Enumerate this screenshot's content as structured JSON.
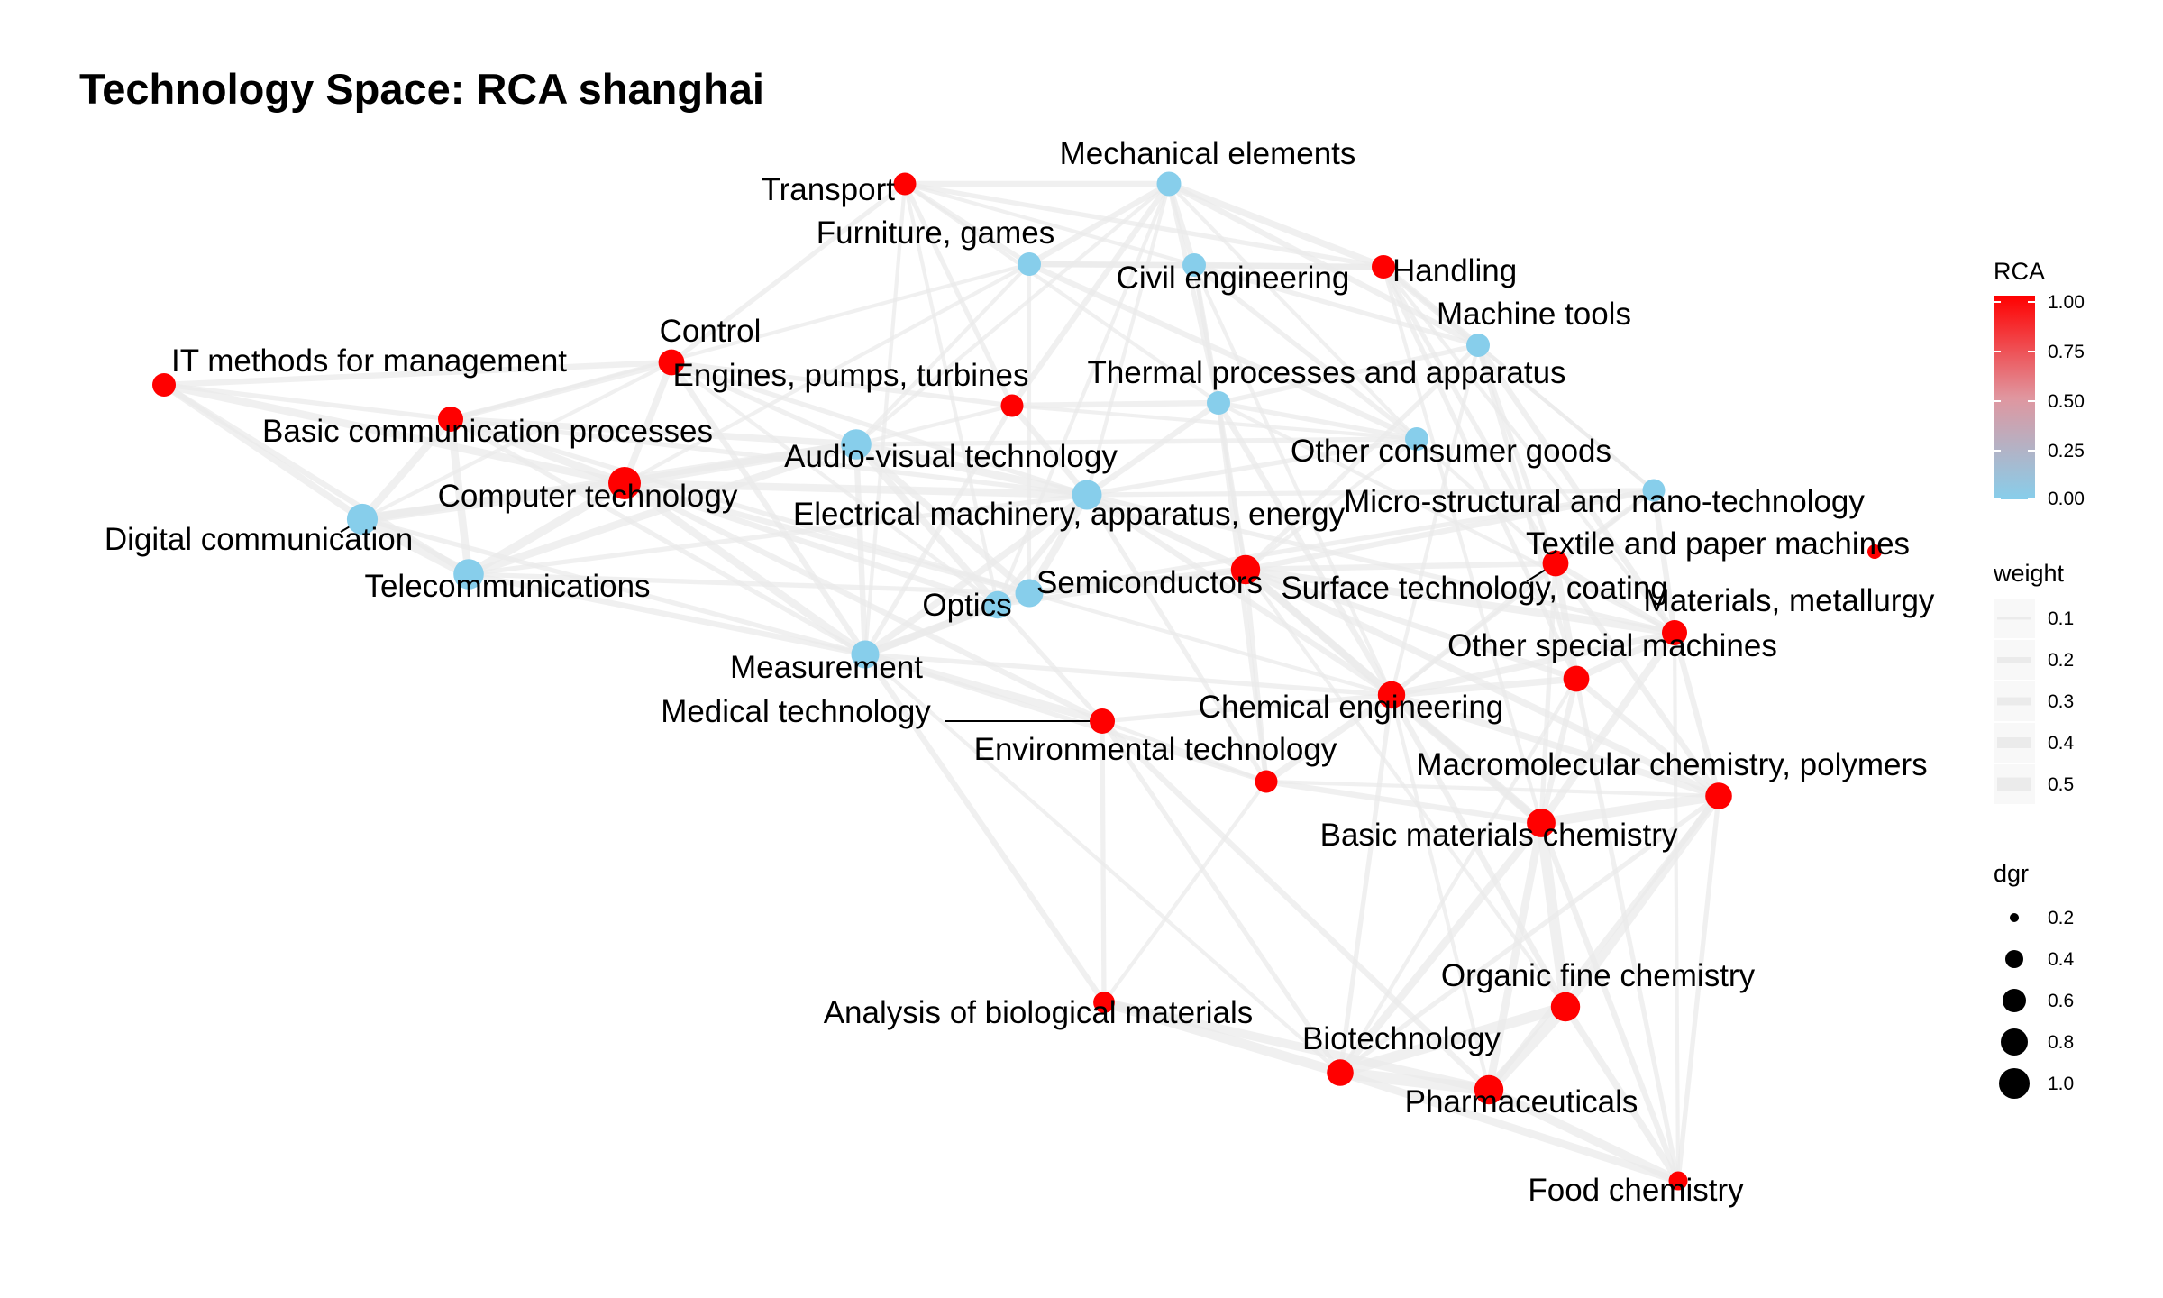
{
  "title": "Technology Space: RCA shanghai",
  "colors": {
    "low": "#87CEEB",
    "high": "#FF0000",
    "edge": "#EBEBEB",
    "background": "#FFFFFF"
  },
  "nodes": [
    {
      "id": "transport",
      "label": "Transport",
      "rca": 1,
      "dgr": 0.25
    },
    {
      "id": "mechanical-elements",
      "label": "Mechanical elements",
      "rca": 0,
      "dgr": 0.35
    },
    {
      "id": "furniture-games",
      "label": "Furniture, games",
      "rca": 0,
      "dgr": 0.3
    },
    {
      "id": "civil-engineering",
      "label": "Civil engineering",
      "rca": 0,
      "dgr": 0.3
    },
    {
      "id": "handling",
      "label": "Handling",
      "rca": 1,
      "dgr": 0.3
    },
    {
      "id": "machine-tools",
      "label": "Machine tools",
      "rca": 0,
      "dgr": 0.3
    },
    {
      "id": "control",
      "label": "Control",
      "rca": 1,
      "dgr": 0.45
    },
    {
      "id": "it-methods",
      "label": "IT methods for management",
      "rca": 1,
      "dgr": 0.3
    },
    {
      "id": "engines-pumps",
      "label": "Engines, pumps, turbines",
      "rca": 1,
      "dgr": 0.25
    },
    {
      "id": "thermal-processes",
      "label": "Thermal processes and apparatus",
      "rca": 0,
      "dgr": 0.3
    },
    {
      "id": "basic-communication",
      "label": "Basic communication processes",
      "rca": 1,
      "dgr": 0.4
    },
    {
      "id": "audio-visual",
      "label": "Audio-visual technology",
      "rca": 0,
      "dgr": 0.8
    },
    {
      "id": "other-consumer-goods",
      "label": "Other consumer goods",
      "rca": 0,
      "dgr": 0.3
    },
    {
      "id": "computer-technology",
      "label": "Computer technology",
      "rca": 1,
      "dgr": 1.0
    },
    {
      "id": "digital-communication",
      "label": "Digital communication",
      "rca": 0,
      "dgr": 0.85
    },
    {
      "id": "electrical-machinery",
      "label": "Electrical machinery, apparatus, energy",
      "rca": 0,
      "dgr": 0.75
    },
    {
      "id": "micro-structural",
      "label": "Micro-structural and nano-technology",
      "rca": 0,
      "dgr": 0.25
    },
    {
      "id": "textile-paper",
      "label": "Textile and paper machines",
      "rca": 1,
      "dgr": 0.45
    },
    {
      "id": "telecommunications",
      "label": "Telecommunications",
      "rca": 0,
      "dgr": 0.8
    },
    {
      "id": "semiconductors",
      "label": "Semiconductors",
      "rca": 0,
      "dgr": 0.6
    },
    {
      "id": "surface-technology",
      "label": "Surface technology, coating",
      "rca": 1,
      "dgr": 0.7
    },
    {
      "id": "materials-metallurgy",
      "label": "Materials, metallurgy",
      "rca": 1,
      "dgr": 0.4
    },
    {
      "id": "optics",
      "label": "Optics",
      "rca": 0,
      "dgr": 0.55
    },
    {
      "id": "other-special-machines",
      "label": "Other special machines",
      "rca": 1,
      "dgr": 0.45
    },
    {
      "id": "measurement",
      "label": "Measurement",
      "rca": 0,
      "dgr": 0.6
    },
    {
      "id": "chemical-engineering",
      "label": "Chemical engineering",
      "rca": 1,
      "dgr": 0.55
    },
    {
      "id": "medical-technology",
      "label": "Medical technology",
      "rca": 1,
      "dgr": 0.4
    },
    {
      "id": "environmental-technology",
      "label": "Environmental technology",
      "rca": 1,
      "dgr": 0.25
    },
    {
      "id": "macromolecular",
      "label": "Macromolecular chemistry, polymers",
      "rca": 1,
      "dgr": 0.5
    },
    {
      "id": "basic-materials",
      "label": "Basic materials chemistry",
      "rca": 1,
      "dgr": 0.65
    },
    {
      "id": "organic-fine",
      "label": "Organic fine chemistry",
      "rca": 1,
      "dgr": 0.7
    },
    {
      "id": "analysis-bio",
      "label": "Analysis of biological materials",
      "rca": 1,
      "dgr": 0.2
    },
    {
      "id": "biotechnology",
      "label": "Biotechnology",
      "rca": 1,
      "dgr": 0.5
    },
    {
      "id": "pharmaceuticals",
      "label": "Pharmaceuticals",
      "rca": 1,
      "dgr": 0.7
    },
    {
      "id": "food-chemistry",
      "label": "Food chemistry",
      "rca": 1,
      "dgr": 0.1
    }
  ],
  "edges": [
    [
      "transport",
      "mechanical-elements",
      0.2
    ],
    [
      "transport",
      "handling",
      0.15
    ],
    [
      "transport",
      "furniture-games",
      0.15
    ],
    [
      "transport",
      "civil-engineering",
      0.1
    ],
    [
      "transport",
      "control",
      0.15
    ],
    [
      "transport",
      "engines-pumps",
      0.15
    ],
    [
      "transport",
      "measurement",
      0.1
    ],
    [
      "transport",
      "optics",
      0.1
    ],
    [
      "transport",
      "thermal-processes",
      0.1
    ],
    [
      "mechanical-elements",
      "handling",
      0.25
    ],
    [
      "mechanical-elements",
      "furniture-games",
      0.2
    ],
    [
      "mechanical-elements",
      "civil-engineering",
      0.2
    ],
    [
      "mechanical-elements",
      "machine-tools",
      0.2
    ],
    [
      "mechanical-elements",
      "engines-pumps",
      0.2
    ],
    [
      "mechanical-elements",
      "thermal-processes",
      0.15
    ],
    [
      "mechanical-elements",
      "other-consumer-goods",
      0.1
    ],
    [
      "mechanical-elements",
      "audio-visual",
      0.1
    ],
    [
      "mechanical-elements",
      "optics",
      0.1
    ],
    [
      "mechanical-elements",
      "electrical-machinery",
      0.1
    ],
    [
      "furniture-games",
      "civil-engineering",
      0.2
    ],
    [
      "furniture-games",
      "handling",
      0.2
    ],
    [
      "furniture-games",
      "other-consumer-goods",
      0.2
    ],
    [
      "furniture-games",
      "audio-visual",
      0.1
    ],
    [
      "furniture-games",
      "computer-technology",
      0.1
    ],
    [
      "furniture-games",
      "basic-communication",
      0.1
    ],
    [
      "furniture-games",
      "semiconductors",
      0.1
    ],
    [
      "civil-engineering",
      "handling",
      0.2
    ],
    [
      "civil-engineering",
      "machine-tools",
      0.15
    ],
    [
      "civil-engineering",
      "thermal-processes",
      0.15
    ],
    [
      "civil-engineering",
      "other-consumer-goods",
      0.15
    ],
    [
      "civil-engineering",
      "surface-technology",
      0.1
    ],
    [
      "civil-engineering",
      "chemical-engineering",
      0.1
    ],
    [
      "handling",
      "machine-tools",
      0.25
    ],
    [
      "handling",
      "other-special-machines",
      0.15
    ],
    [
      "handling",
      "textile-paper",
      0.15
    ],
    [
      "handling",
      "materials-metallurgy",
      0.1
    ],
    [
      "handling",
      "basic-materials",
      0.1
    ],
    [
      "handling",
      "micro-structural",
      0.1
    ],
    [
      "machine-tools",
      "materials-metallurgy",
      0.2
    ],
    [
      "machine-tools",
      "surface-technology",
      0.15
    ],
    [
      "machine-tools",
      "thermal-processes",
      0.15
    ],
    [
      "machine-tools",
      "other-special-machines",
      0.15
    ],
    [
      "machine-tools",
      "textile-paper",
      0.15
    ],
    [
      "machine-tools",
      "micro-structural",
      0.1
    ],
    [
      "machine-tools",
      "chemical-engineering",
      0.1
    ],
    [
      "control",
      "computer-technology",
      0.25
    ],
    [
      "control",
      "it-methods",
      0.2
    ],
    [
      "control",
      "measurement",
      0.2
    ],
    [
      "control",
      "basic-communication",
      0.2
    ],
    [
      "control",
      "audio-visual",
      0.15
    ],
    [
      "control",
      "electrical-machinery",
      0.15
    ],
    [
      "control",
      "engines-pumps",
      0.15
    ],
    [
      "control",
      "digital-communication",
      0.1
    ],
    [
      "control",
      "optics",
      0.1
    ],
    [
      "it-methods",
      "computer-technology",
      0.3
    ],
    [
      "it-methods",
      "digital-communication",
      0.25
    ],
    [
      "it-methods",
      "telecommunications",
      0.2
    ],
    [
      "it-methods",
      "basic-communication",
      0.15
    ],
    [
      "engines-pumps",
      "thermal-processes",
      0.2
    ],
    [
      "engines-pumps",
      "electrical-machinery",
      0.2
    ],
    [
      "engines-pumps",
      "measurement",
      0.15
    ],
    [
      "engines-pumps",
      "audio-visual",
      0.1
    ],
    [
      "engines-pumps",
      "other-consumer-goods",
      0.1
    ],
    [
      "thermal-processes",
      "chemical-engineering",
      0.2
    ],
    [
      "thermal-processes",
      "surface-technology",
      0.15
    ],
    [
      "thermal-processes",
      "electrical-machinery",
      0.2
    ],
    [
      "thermal-processes",
      "other-consumer-goods",
      0.15
    ],
    [
      "thermal-processes",
      "environmental-technology",
      0.15
    ],
    [
      "thermal-processes",
      "materials-metallurgy",
      0.1
    ],
    [
      "basic-communication",
      "computer-technology",
      0.3
    ],
    [
      "basic-communication",
      "digital-communication",
      0.3
    ],
    [
      "basic-communication",
      "telecommunications",
      0.3
    ],
    [
      "basic-communication",
      "audio-visual",
      0.25
    ],
    [
      "basic-communication",
      "semiconductors",
      0.15
    ],
    [
      "basic-communication",
      "electrical-machinery",
      0.15
    ],
    [
      "basic-communication",
      "measurement",
      0.15
    ],
    [
      "audio-visual",
      "computer-technology",
      0.35
    ],
    [
      "audio-visual",
      "digital-communication",
      0.3
    ],
    [
      "audio-visual",
      "telecommunications",
      0.3
    ],
    [
      "audio-visual",
      "electrical-machinery",
      0.3
    ],
    [
      "audio-visual",
      "semiconductors",
      0.25
    ],
    [
      "audio-visual",
      "optics",
      0.25
    ],
    [
      "audio-visual",
      "measurement",
      0.2
    ],
    [
      "audio-visual",
      "other-consumer-goods",
      0.15
    ],
    [
      "other-consumer-goods",
      "electrical-machinery",
      0.15
    ],
    [
      "other-consumer-goods",
      "surface-technology",
      0.1
    ],
    [
      "other-consumer-goods",
      "textile-paper",
      0.1
    ],
    [
      "computer-technology",
      "digital-communication",
      0.4
    ],
    [
      "computer-technology",
      "telecommunications",
      0.35
    ],
    [
      "computer-technology",
      "electrical-machinery",
      0.3
    ],
    [
      "computer-technology",
      "measurement",
      0.3
    ],
    [
      "computer-technology",
      "semiconductors",
      0.2
    ],
    [
      "computer-technology",
      "optics",
      0.2
    ],
    [
      "computer-technology",
      "medical-technology",
      0.2
    ],
    [
      "digital-communication",
      "telecommunications",
      0.45
    ],
    [
      "digital-communication",
      "measurement",
      0.15
    ],
    [
      "electrical-machinery",
      "semiconductors",
      0.3
    ],
    [
      "electrical-machinery",
      "surface-technology",
      0.25
    ],
    [
      "electrical-machinery",
      "measurement",
      0.25
    ],
    [
      "electrical-machinery",
      "optics",
      0.2
    ],
    [
      "electrical-machinery",
      "chemical-engineering",
      0.2
    ],
    [
      "electrical-machinery",
      "materials-metallurgy",
      0.15
    ],
    [
      "electrical-machinery",
      "micro-structural",
      0.15
    ],
    [
      "electrical-machinery",
      "environmental-technology",
      0.15
    ],
    [
      "micro-structural",
      "surface-technology",
      0.2
    ],
    [
      "micro-structural",
      "semiconductors",
      0.15
    ],
    [
      "micro-structural",
      "materials-metallurgy",
      0.2
    ],
    [
      "micro-structural",
      "textile-paper",
      0.15
    ],
    [
      "micro-structural",
      "chemical-engineering",
      0.1
    ],
    [
      "textile-paper",
      "other-special-machines",
      0.25
    ],
    [
      "textile-paper",
      "materials-metallurgy",
      0.2
    ],
    [
      "textile-paper",
      "surface-technology",
      0.2
    ],
    [
      "textile-paper",
      "macromolecular",
      0.2
    ],
    [
      "textile-paper",
      "chemical-engineering",
      0.15
    ],
    [
      "textile-paper",
      "basic-materials",
      0.15
    ],
    [
      "telecommunications",
      "measurement",
      0.2
    ],
    [
      "telecommunications",
      "electrical-machinery",
      0.15
    ],
    [
      "telecommunications",
      "semiconductors",
      0.15
    ],
    [
      "semiconductors",
      "optics",
      0.35
    ],
    [
      "semiconductors",
      "surface-technology",
      0.25
    ],
    [
      "semiconductors",
      "measurement",
      0.25
    ],
    [
      "semiconductors",
      "chemical-engineering",
      0.1
    ],
    [
      "surface-technology",
      "materials-metallurgy",
      0.3
    ],
    [
      "surface-technology",
      "chemical-engineering",
      0.3
    ],
    [
      "surface-technology",
      "macromolecular",
      0.25
    ],
    [
      "surface-technology",
      "basic-materials",
      0.25
    ],
    [
      "surface-technology",
      "other-special-machines",
      0.2
    ],
    [
      "surface-technology",
      "optics",
      0.15
    ],
    [
      "surface-technology",
      "environmental-technology",
      0.15
    ],
    [
      "surface-technology",
      "organic-fine",
      0.1
    ],
    [
      "materials-metallurgy",
      "other-special-machines",
      0.25
    ],
    [
      "materials-metallurgy",
      "chemical-engineering",
      0.25
    ],
    [
      "materials-metallurgy",
      "basic-materials",
      0.3
    ],
    [
      "materials-metallurgy",
      "macromolecular",
      0.2
    ],
    [
      "materials-metallurgy",
      "food-chemistry",
      0.1
    ],
    [
      "optics",
      "measurement",
      0.3
    ],
    [
      "optics",
      "medical-technology",
      0.15
    ],
    [
      "other-special-machines",
      "chemical-engineering",
      0.25
    ],
    [
      "other-special-machines",
      "macromolecular",
      0.2
    ],
    [
      "other-special-machines",
      "basic-materials",
      0.2
    ],
    [
      "other-special-machines",
      "food-chemistry",
      0.15
    ],
    [
      "other-special-machines",
      "biotechnology",
      0.1
    ],
    [
      "measurement",
      "medical-technology",
      0.3
    ],
    [
      "measurement",
      "environmental-technology",
      0.15
    ],
    [
      "measurement",
      "chemical-engineering",
      0.15
    ],
    [
      "measurement",
      "analysis-bio",
      0.2
    ],
    [
      "measurement",
      "biotechnology",
      0.1
    ],
    [
      "chemical-engineering",
      "basic-materials",
      0.35
    ],
    [
      "chemical-engineering",
      "macromolecular",
      0.25
    ],
    [
      "chemical-engineering",
      "environmental-technology",
      0.25
    ],
    [
      "chemical-engineering",
      "organic-fine",
      0.2
    ],
    [
      "chemical-engineering",
      "biotechnology",
      0.15
    ],
    [
      "chemical-engineering",
      "pharmaceuticals",
      0.1
    ],
    [
      "chemical-engineering",
      "medical-technology",
      0.15
    ],
    [
      "medical-technology",
      "pharmaceuticals",
      0.2
    ],
    [
      "medical-technology",
      "analysis-bio",
      0.15
    ],
    [
      "medical-technology",
      "biotechnology",
      0.15
    ],
    [
      "medical-technology",
      "environmental-technology",
      0.1
    ],
    [
      "environmental-technology",
      "basic-materials",
      0.2
    ],
    [
      "environmental-technology",
      "analysis-bio",
      0.1
    ],
    [
      "environmental-technology",
      "macromolecular",
      0.1
    ],
    [
      "macromolecular",
      "basic-materials",
      0.4
    ],
    [
      "macromolecular",
      "organic-fine",
      0.35
    ],
    [
      "macromolecular",
      "pharmaceuticals",
      0.2
    ],
    [
      "macromolecular",
      "food-chemistry",
      0.15
    ],
    [
      "macromolecular",
      "biotechnology",
      0.15
    ],
    [
      "basic-materials",
      "organic-fine",
      0.45
    ],
    [
      "basic-materials",
      "pharmaceuticals",
      0.3
    ],
    [
      "basic-materials",
      "biotechnology",
      0.3
    ],
    [
      "basic-materials",
      "food-chemistry",
      0.2
    ],
    [
      "organic-fine",
      "pharmaceuticals",
      0.5
    ],
    [
      "organic-fine",
      "biotechnology",
      0.45
    ],
    [
      "organic-fine",
      "food-chemistry",
      0.25
    ],
    [
      "analysis-bio",
      "biotechnology",
      0.4
    ],
    [
      "analysis-bio",
      "pharmaceuticals",
      0.35
    ],
    [
      "biotechnology",
      "pharmaceuticals",
      0.5
    ],
    [
      "biotechnology",
      "food-chemistry",
      0.3
    ],
    [
      "pharmaceuticals",
      "food-chemistry",
      0.35
    ]
  ],
  "legend": {
    "rca": {
      "title": "RCA",
      "ticks": [
        "1.00",
        "0.75",
        "0.50",
        "0.25",
        "0.00"
      ]
    },
    "weight": {
      "title": "weight",
      "items": [
        "0.1",
        "0.2",
        "0.3",
        "0.4",
        "0.5"
      ]
    },
    "dgr": {
      "title": "dgr",
      "items": [
        "0.2",
        "0.4",
        "0.6",
        "0.8",
        "1.0"
      ]
    }
  }
}
